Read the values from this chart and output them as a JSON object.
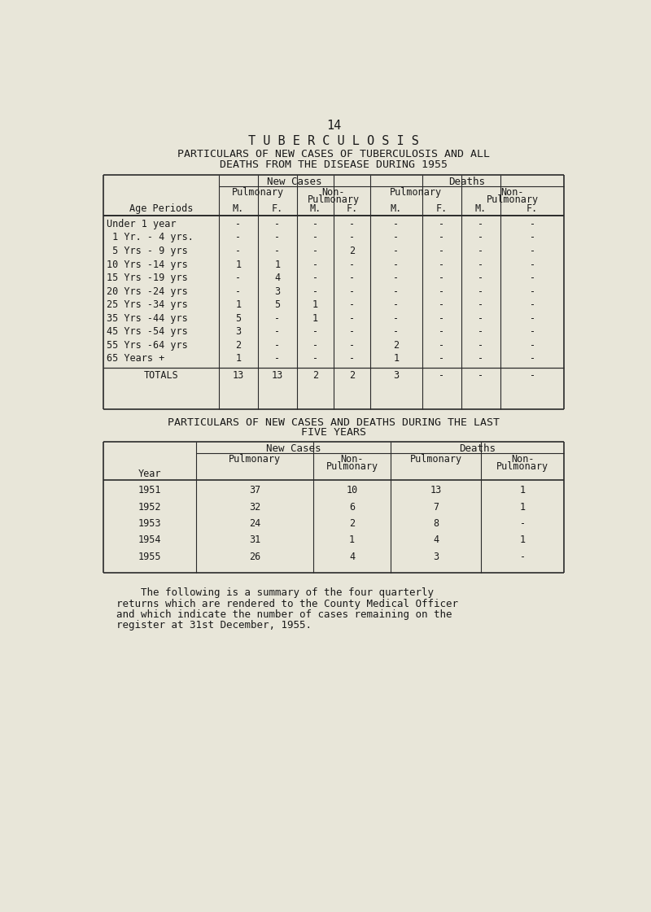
{
  "page_number": "14",
  "title1": "T U B E R C U L O S I S",
  "title2": "PARTICULARS OF NEW CASES OF TUBERCULOSIS AND ALL",
  "title3": "DEATHS FROM THE DISEASE DURING 1955",
  "table1_col_label": "Age Periods",
  "table1_rows": [
    [
      "Under 1 year",
      "-",
      "-",
      "-",
      "-",
      "-",
      "-",
      "-",
      "-"
    ],
    [
      " 1 Yr. - 4 yrs.",
      "-",
      "-",
      "-",
      "-",
      "-",
      "-",
      "-",
      "-"
    ],
    [
      " 5 Yrs - 9 yrs",
      "-",
      "-",
      "-",
      "2",
      "-",
      "-",
      "-",
      "-"
    ],
    [
      "10 Yrs -14 yrs",
      "1",
      "1",
      "-",
      "-",
      "-",
      "-",
      "-",
      "-"
    ],
    [
      "15 Yrs -19 yrs",
      "-",
      "4",
      "-",
      "-",
      "-",
      "-",
      "-",
      "-"
    ],
    [
      "20 Yrs -24 yrs",
      "-",
      "3",
      "-",
      "-",
      "-",
      "-",
      "-",
      "-"
    ],
    [
      "25 Yrs -34 yrs",
      "1",
      "5",
      "1",
      "-",
      "-",
      "-",
      "-",
      "-"
    ],
    [
      "35 Yrs -44 yrs",
      "5",
      "-",
      "1",
      "-",
      "-",
      "-",
      "-",
      "-"
    ],
    [
      "45 Yrs -54 yrs",
      "3",
      "-",
      "-",
      "-",
      "-",
      "-",
      "-",
      "-"
    ],
    [
      "55 Yrs -64 yrs",
      "2",
      "-",
      "-",
      "-",
      "2",
      "-",
      "-",
      "-"
    ],
    [
      "65 Years +",
      "1",
      "-",
      "-",
      "-",
      "1",
      "-",
      "-",
      "-"
    ]
  ],
  "table1_totals": [
    "TOTALS",
    "13",
    "13",
    "2",
    "2",
    "3",
    "-",
    "-",
    "-"
  ],
  "table2_title1": "PARTICULARS OF NEW CASES AND DEATHS DURING THE LAST",
  "table2_title2": "FIVE YEARS",
  "table2_col_label": "Year",
  "table2_rows": [
    [
      "1951",
      "37",
      "10",
      "13",
      "1"
    ],
    [
      "1952",
      "32",
      "6",
      "7",
      "1"
    ],
    [
      "1953",
      "24",
      "2",
      "8",
      "-"
    ],
    [
      "1954",
      "31",
      "1",
      "4",
      "1"
    ],
    [
      "1955",
      "26",
      "4",
      "3",
      "-"
    ]
  ],
  "footer_text": "    The following is a summary of the four quarterly\nreturns which are rendered to the County Medical Officer\nand which indicate the number of cases remaining on the\nregister at 31st December, 1955.",
  "bg_color": "#e8e6d9",
  "text_color": "#1a1a1a"
}
